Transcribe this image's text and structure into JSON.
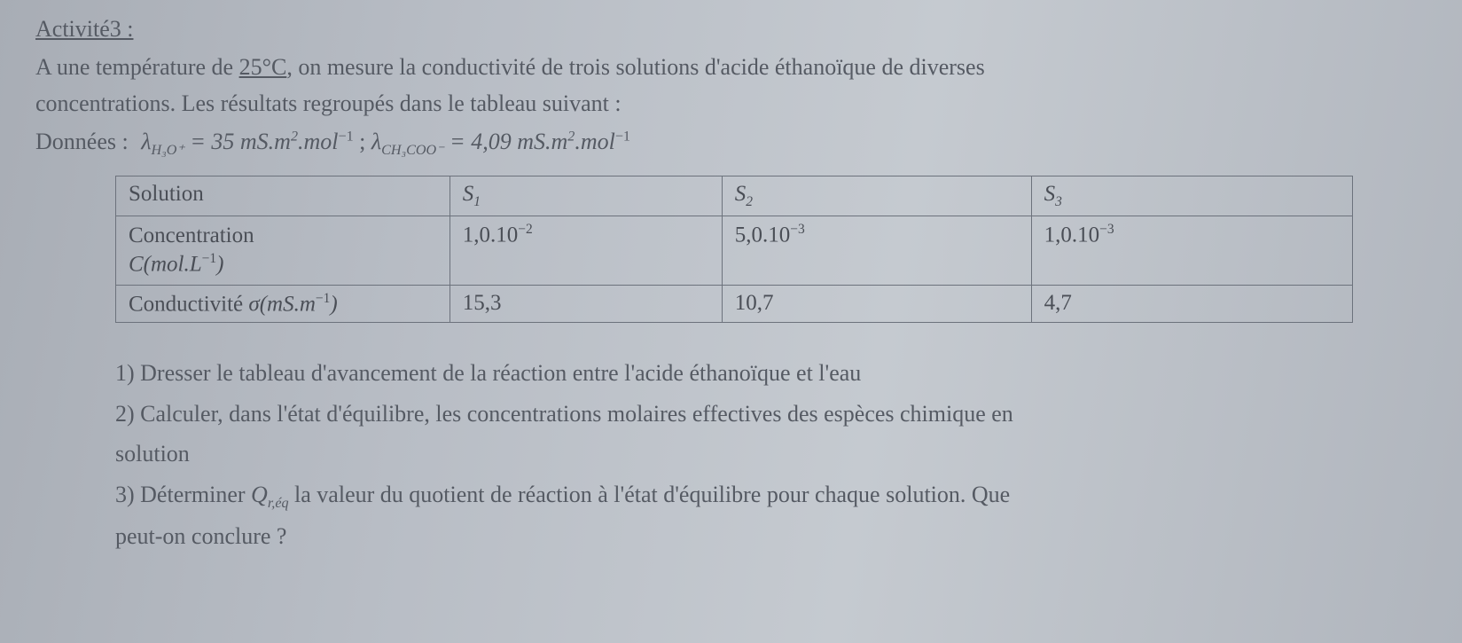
{
  "header": {
    "title": "Activité3 :",
    "l1a": "A une température de ",
    "l1b": "25°C",
    "l1c": ", on mesure la conductivité de trois solutions d'acide éthanoïque de diverses",
    "l2": "concentrations. Les résultats regroupés dans le tableau suivant :",
    "donnees_label": "Données :",
    "lam1_sym": "λ",
    "lam1_sub": "H₃O⁺",
    "lam1_val": " = 35 mS.m",
    "lam1_sup": "2",
    "lam1_mol": ".mol",
    "lam1_molsup": "−1",
    "sep": "   ;   ",
    "lam2_sym": "λ",
    "lam2_sub": "CH₃COO⁻",
    "lam2_val": " = 4,09 mS.m",
    "lam2_sup": "2",
    "lam2_mol": ".mol",
    "lam2_molsup": "−1"
  },
  "table": {
    "r0c0": "Solution",
    "r0c1_sym": "S",
    "r0c1_sub": "1",
    "r0c2_sym": "S",
    "r0c2_sub": "2",
    "r0c3_sym": "S",
    "r0c3_sub": "3",
    "r1c0a": "Concentration",
    "r1c0b_sym": "C(mol.L",
    "r1c0b_sup": "−1",
    "r1c0b_close": ")",
    "r1c1_val": "1,0.10",
    "r1c1_sup": "−2",
    "r1c2_val": "5,0.10",
    "r1c2_sup": "−3",
    "r1c3_val": "1,0.10",
    "r1c3_sup": "−3",
    "r2c0a": "Conductivité ",
    "r2c0_sig": "σ(mS.m",
    "r2c0_sup": "−1",
    "r2c0_close": ")",
    "r2c1": "15,3",
    "r2c2": "10,7",
    "r2c3": "4,7"
  },
  "questions": {
    "q1": "1) Dresser le tableau d'avancement de la réaction entre l'acide éthanoïque et l'eau",
    "q1_hand": "",
    "q2": "2) Calculer, dans l'état d'équilibre, les concentrations molaires effectives des espèces chimique en",
    "q2b": "solution",
    "q3a": "3)  Déterminer ",
    "q3_Q": "Q",
    "q3_Qsub": "r,éq",
    "q3b": "  la valeur du quotient de réaction à l'état d'équilibre pour chaque solution. Que",
    "q4": "peut-on conclure ?"
  }
}
